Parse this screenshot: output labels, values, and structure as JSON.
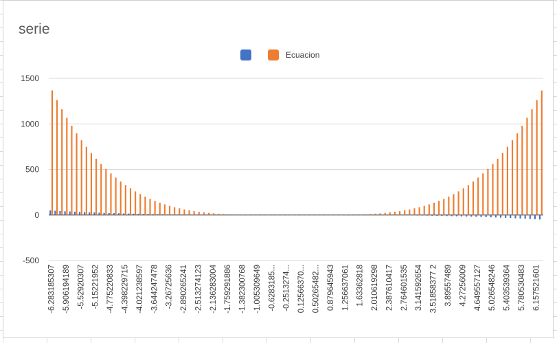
{
  "chart_data": {
    "type": "bar",
    "title": "serie",
    "xlabel": "",
    "ylabel": "",
    "ylim": [
      -500,
      1500
    ],
    "yticks": [
      -500,
      0,
      500,
      1000,
      1500
    ],
    "grid": true,
    "legend_placement": "top-center",
    "series": [
      {
        "name": "",
        "color": "#4472c4"
      },
      {
        "name": "Ecuacion",
        "color": "#ed7d31"
      }
    ],
    "categories_start": -6.283185307,
    "categories_step": 0.1256637061,
    "categories_count": 101,
    "x_tick_labels": [
      "-6.283185307",
      "-5.906194189",
      "-5.52920307",
      "-5.15221952",
      "-4.775220833",
      "-4.398229715",
      "-4.021238597",
      "-3.644247478",
      "-3.26725636",
      "-2.890265241",
      "-2.513274123",
      "-2.136283004",
      "-1.759291886",
      "-1.382300768",
      "-1.005309649",
      "-0.6283185...",
      "-0.2513274...",
      "0.12566370...",
      "0.50265482...",
      "0.879645943",
      "1.256637061",
      "1.63362818",
      "2.010619298",
      "2.387610417",
      "2.764601535",
      "3.141592654",
      "3.51858377 2",
      "3.89557489",
      "4.27256009",
      "4.649557127",
      "5.026548246",
      "5.403539364",
      "5.780530483",
      "6.157521601"
    ]
  },
  "colors": {
    "accent_blue": "#4472c4",
    "accent_orange": "#ed7d31"
  }
}
